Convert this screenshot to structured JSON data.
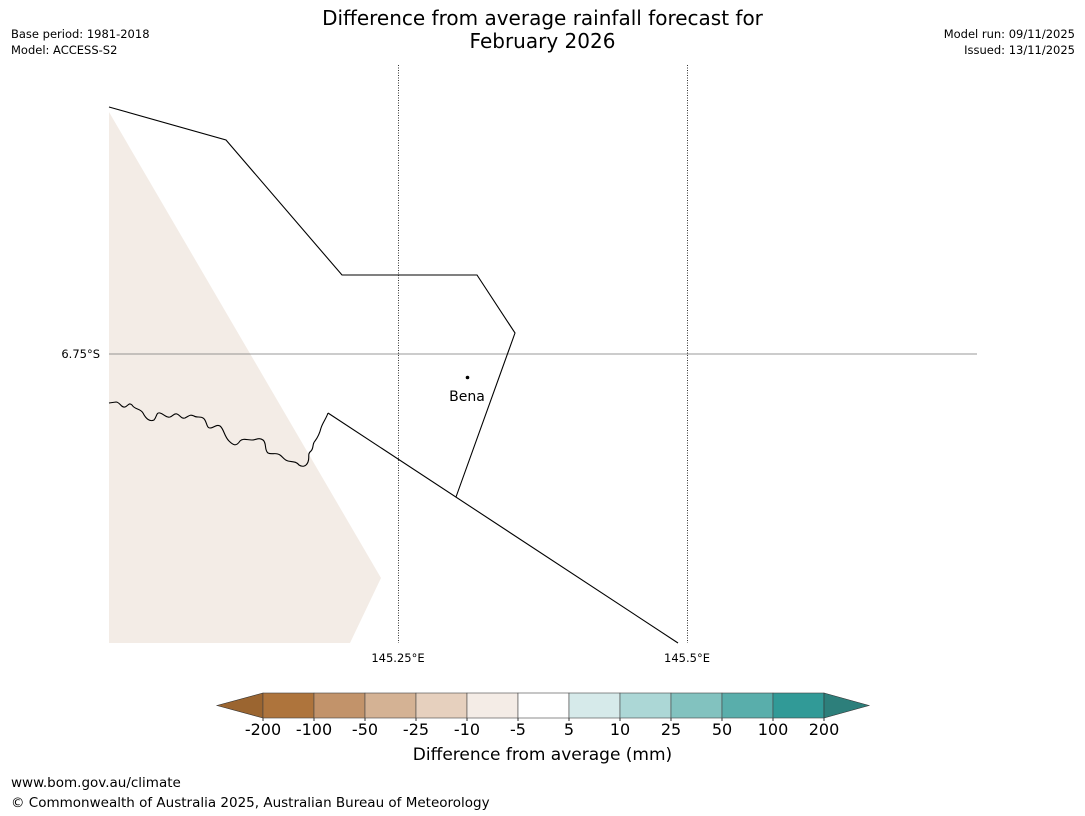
{
  "title_line1": "Difference from average rainfall forecast for",
  "title_line2": "February 2026",
  "base_period": "Base period: 1981-2018",
  "model": "Model: ACCESS-S2",
  "model_run": "Model run: 09/11/2025",
  "issued": "Issued: 13/11/2025",
  "lat_label": "6.75°S",
  "lon_labels": [
    "145.25°E",
    "145.5°E"
  ],
  "town": {
    "name": "Bena"
  },
  "colorbar": {
    "title": "Difference from average (mm)",
    "ticks": [
      "-200",
      "-100",
      "-50",
      "-25",
      "-10",
      "-5",
      "5",
      "10",
      "25",
      "50",
      "100",
      "200"
    ],
    "under_color": "#9b6530",
    "colors": [
      "#ae743c",
      "#c2936a",
      "#d4b294",
      "#e6d0be",
      "#f4ece6",
      "#ffffff",
      "#d6eaea",
      "#acd7d6",
      "#82c2bf",
      "#59aeab",
      "#319a97"
    ],
    "over_color": "#2d7f7b"
  },
  "map_fill_color": "#f3ece6",
  "footer_url": "www.bom.gov.au/climate",
  "footer_copyright": "© Commonwealth of Australia 2025, Australian Bureau of Meteorology"
}
